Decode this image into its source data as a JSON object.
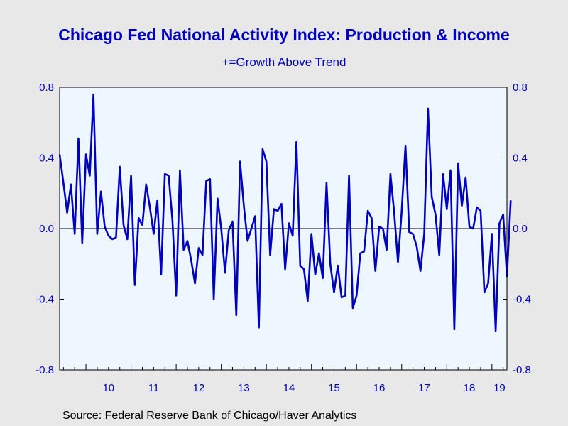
{
  "chart_data": {
    "type": "line",
    "title": "Chicago Fed National Activity Index: Production & Income",
    "subtitle": "+=Growth Above Trend",
    "source": "Source:  Federal Reserve Bank of Chicago/Haver Analytics",
    "xlabel": "",
    "ylabel": "",
    "ylim": [
      -0.8,
      0.8
    ],
    "yticks": [
      "0.8",
      "0.4",
      "0.0",
      "-0.4",
      "-0.8"
    ],
    "ytick_values": [
      0.8,
      0.4,
      0.0,
      -0.4,
      -0.8
    ],
    "xticks": [
      "10",
      "11",
      "12",
      "13",
      "14",
      "15",
      "16",
      "17",
      "18",
      "19"
    ],
    "x_start": "2009-06",
    "x_end": "2019-05",
    "grid": false,
    "zero_line": true,
    "colors": {
      "series": "#0000c0",
      "text": "#0000c0",
      "plot_bg": "#eef6ff",
      "page_bg": "#e8e8e8"
    },
    "series": [
      {
        "values": [
          0.42,
          0.26,
          0.09,
          0.25,
          -0.03,
          0.51,
          -0.08,
          0.42,
          0.3,
          0.76,
          -0.03,
          0.21,
          0.01,
          -0.04,
          -0.06,
          -0.05,
          0.35,
          0.02,
          -0.06,
          0.3,
          -0.32,
          0.06,
          0.02,
          0.25,
          0.12,
          -0.03,
          0.16,
          -0.26,
          0.31,
          0.3,
          0.05,
          -0.38,
          0.33,
          -0.12,
          -0.07,
          -0.18,
          -0.31,
          -0.11,
          -0.15,
          0.27,
          0.28,
          -0.4,
          0.17,
          0.0,
          -0.25,
          -0.01,
          0.04,
          -0.49,
          0.38,
          0.13,
          -0.07,
          0.0,
          0.07,
          -0.56,
          0.45,
          0.38,
          -0.15,
          0.11,
          0.1,
          0.14,
          -0.23,
          0.03,
          -0.04,
          0.49,
          -0.21,
          -0.23,
          -0.41,
          -0.03,
          -0.26,
          -0.14,
          -0.28,
          0.26,
          -0.2,
          -0.36,
          -0.21,
          -0.39,
          -0.38,
          0.3,
          -0.45,
          -0.38,
          -0.14,
          -0.13,
          0.1,
          0.06,
          -0.24,
          0.01,
          0.0,
          -0.12,
          0.31,
          0.09,
          -0.19,
          0.1,
          0.47,
          -0.02,
          -0.03,
          -0.1,
          -0.24,
          -0.03,
          0.68,
          0.18,
          0.08,
          -0.15,
          0.31,
          0.11,
          0.33,
          -0.57,
          0.37,
          0.13,
          0.29,
          0.01,
          0.0,
          0.12,
          0.1,
          -0.36,
          -0.31,
          -0.03,
          -0.58,
          0.03,
          0.08,
          -0.27,
          0.16
        ]
      }
    ]
  }
}
